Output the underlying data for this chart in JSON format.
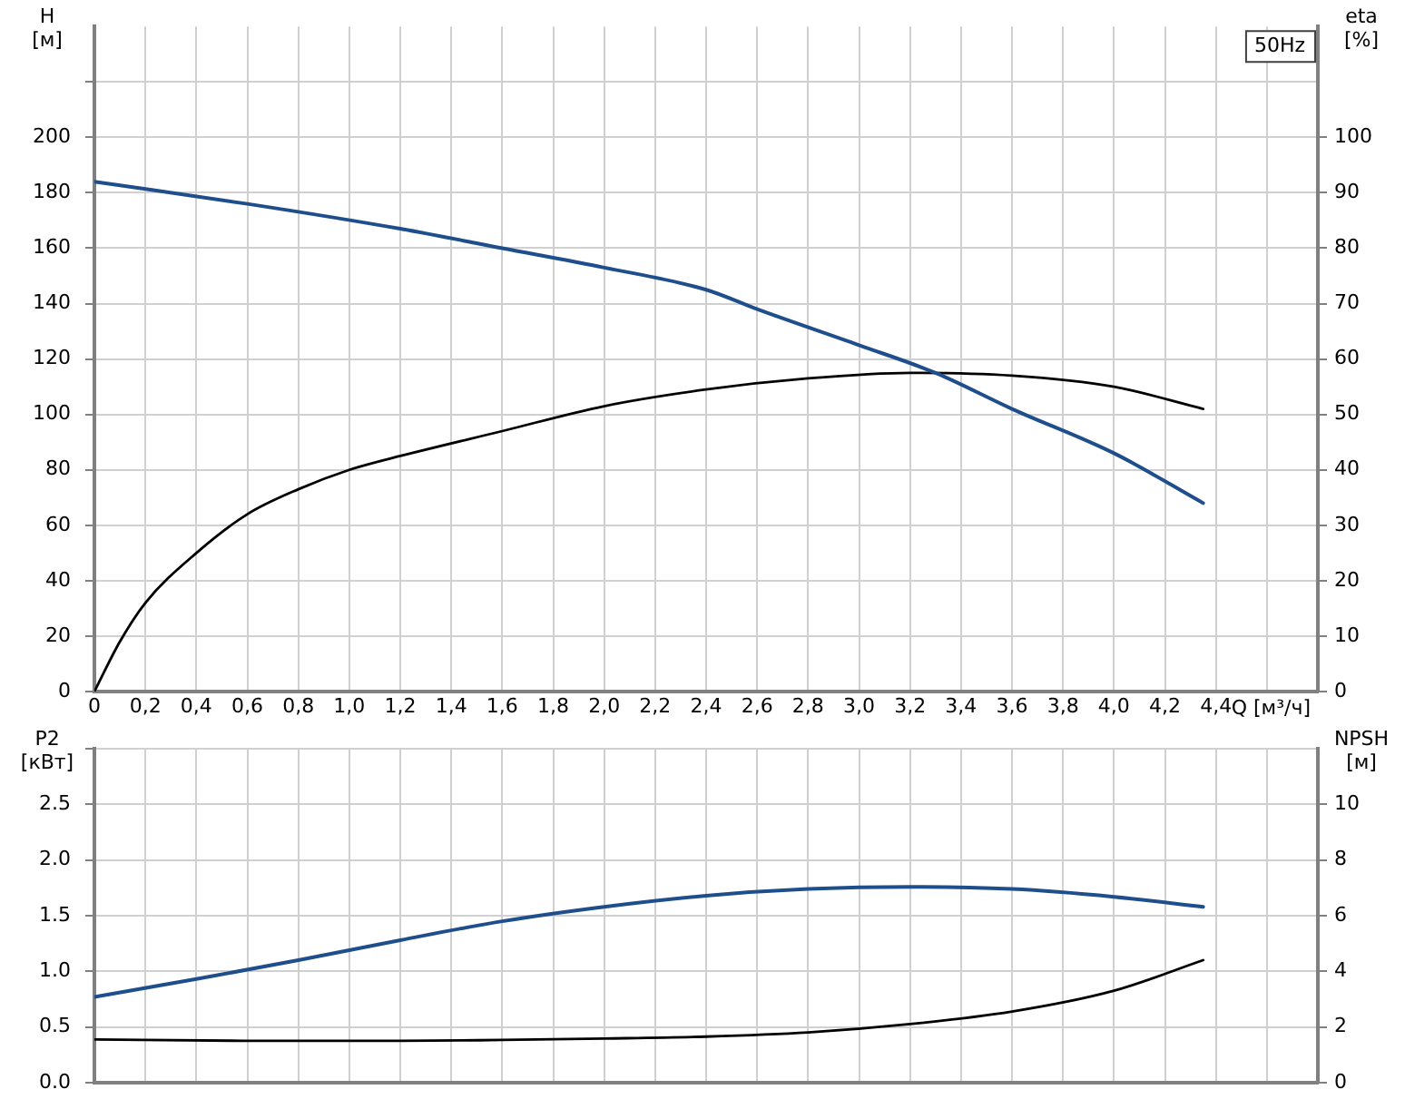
{
  "chart_data": [
    {
      "type": "line",
      "title": "50Hz",
      "xlabel": "Q [м³/ч]",
      "ylabel": "H [м]",
      "y2label": "eta [%]",
      "legend": false,
      "marker": "none",
      "line_style": "solid",
      "grid": true,
      "xlim": [
        0,
        4.8
      ],
      "xticks": [
        0,
        {
          "value": 0.2,
          "label": "0,2"
        },
        {
          "value": 0.4,
          "label": "0,4"
        },
        {
          "value": 0.6,
          "label": "0,6"
        },
        {
          "value": 0.8,
          "label": "0,8"
        },
        {
          "value": 1,
          "label": "1,0"
        },
        {
          "value": 1.2,
          "label": "1,2"
        },
        {
          "value": 1.4,
          "label": "1,4"
        },
        {
          "value": 1.6,
          "label": "1,6"
        },
        {
          "value": 1.8,
          "label": "1,8"
        },
        {
          "value": 2,
          "label": "2,0"
        },
        {
          "value": 2.2,
          "label": "2,2"
        },
        {
          "value": 2.4,
          "label": "2,4"
        },
        {
          "value": 2.6,
          "label": "2,6"
        },
        {
          "value": 2.8,
          "label": "2,8"
        },
        {
          "value": 3,
          "label": "3,0"
        },
        {
          "value": 3.2,
          "label": "3,2"
        },
        {
          "value": 3.4,
          "label": "3,4"
        },
        {
          "value": 3.6,
          "label": "3,6"
        },
        {
          "value": 3.8,
          "label": "3,8"
        },
        {
          "value": 4,
          "label": "4,0"
        },
        {
          "value": 4.2,
          "label": "4,2"
        },
        {
          "value": 4.4,
          "label": "4,4"
        },
        {
          "value": 4.6,
          "label": null
        },
        {
          "value": 4.8,
          "label": null
        }
      ],
      "ylim": [
        0,
        240
      ],
      "yticks": [
        0,
        20,
        40,
        60,
        80,
        100,
        120,
        140,
        160,
        180,
        200,
        {
          "value": 220,
          "label": null
        }
      ],
      "y2lim": [
        0,
        120
      ],
      "y2ticks": [
        0,
        10,
        20,
        30,
        40,
        50,
        60,
        70,
        80,
        90,
        100
      ],
      "series": [
        {
          "color": "#1f4e8c",
          "x": [
            0,
            0.6,
            1.2,
            1.6,
            2.0,
            2.4,
            2.6,
            3.0,
            3.3,
            3.6,
            4.0,
            4.35
          ],
          "values": [
            184,
            176,
            167,
            160,
            153,
            145,
            138,
            125,
            115,
            102,
            86,
            68
          ]
        },
        {
          "color": "#000000",
          "axis": "y2",
          "x": [
            0,
            0.1,
            0.2,
            0.4,
            0.6,
            0.8,
            1.0,
            1.2,
            1.6,
            2.0,
            2.4,
            2.8,
            3.2,
            3.6,
            4.0,
            4.35
          ],
          "values": [
            0,
            9,
            16,
            25,
            32,
            36.5,
            40,
            42.5,
            47,
            51.5,
            54.5,
            56.5,
            57.5,
            57,
            55,
            51
          ]
        }
      ]
    },
    {
      "type": "line",
      "ylabel": "P2 [кВт]",
      "y2label": "NPSH [м]",
      "legend": false,
      "marker": "none",
      "line_style": "solid",
      "grid": true,
      "tick_labels": "y",
      "xlim": [
        0,
        4.8
      ],
      "xticks": [
        0,
        0.2,
        0.4,
        0.6,
        0.8,
        1,
        1.2,
        1.4,
        1.6,
        1.8,
        2,
        2.2,
        2.4,
        2.6,
        2.8,
        3,
        3.2,
        3.4,
        3.6,
        3.8,
        4,
        4.2,
        4.4,
        4.6,
        4.8
      ],
      "ylim": [
        0,
        3
      ],
      "yticks": [
        {
          "value": 0,
          "label": "0.0"
        },
        0.5,
        {
          "value": 1,
          "label": "1.0"
        },
        1.5,
        {
          "value": 2,
          "label": "2.0"
        },
        2.5,
        {
          "value": 3,
          "label": null
        }
      ],
      "y2lim": [
        0,
        12
      ],
      "y2ticks": [
        0,
        2,
        4,
        6,
        8,
        10
      ],
      "series": [
        {
          "color": "#1f4e8c",
          "x": [
            0,
            0.4,
            0.8,
            1.2,
            1.6,
            2.0,
            2.4,
            2.8,
            3.2,
            3.6,
            4.0,
            4.35
          ],
          "values": [
            0.77,
            0.93,
            1.1,
            1.28,
            1.45,
            1.58,
            1.68,
            1.74,
            1.76,
            1.74,
            1.67,
            1.58
          ]
        },
        {
          "color": "#000000",
          "axis": "y2",
          "x": [
            0,
            0.6,
            1.2,
            1.6,
            2.0,
            2.4,
            2.8,
            3.2,
            3.6,
            4.0,
            4.35
          ],
          "values": [
            1.55,
            1.5,
            1.5,
            1.53,
            1.58,
            1.65,
            1.8,
            2.1,
            2.55,
            3.3,
            4.4
          ]
        }
      ]
    }
  ]
}
